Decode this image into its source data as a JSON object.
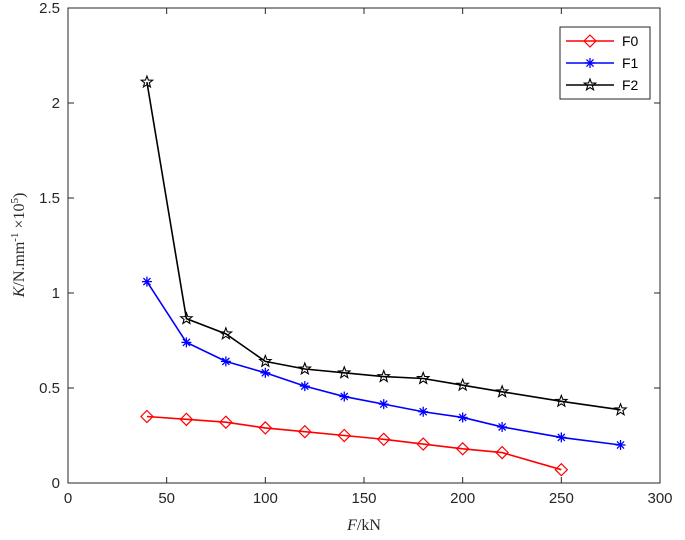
{
  "chart_data": {
    "type": "line",
    "xlabel_italic": "F",
    "xlabel_rest": "/kN",
    "ylabel_italic": "K",
    "ylabel_rest": "/N.mm",
    "ylabel_sup1": "-1",
    "ylabel_times": " ×10",
    "ylabel_sup2": "5",
    "ylabel_close": ")",
    "xlim": [
      0,
      300
    ],
    "ylim": [
      0,
      2.5
    ],
    "xticks": [
      0,
      50,
      100,
      150,
      200,
      250,
      300
    ],
    "yticks": [
      0,
      0.5,
      1,
      1.5,
      2,
      2.5
    ],
    "ytick_labels": [
      "0",
      "0.5",
      "1",
      "1.5",
      "2",
      "2.5"
    ],
    "grid": false,
    "legend_position": "top-right",
    "series": [
      {
        "name": "F0",
        "color": "#ff0000",
        "marker": "diamond",
        "x": [
          40,
          60,
          80,
          100,
          120,
          140,
          160,
          180,
          200,
          220,
          250
        ],
        "y": [
          0.35,
          0.335,
          0.32,
          0.29,
          0.27,
          0.25,
          0.23,
          0.205,
          0.18,
          0.16,
          0.07
        ]
      },
      {
        "name": "F1",
        "color": "#0000ff",
        "marker": "asterisk",
        "x": [
          40,
          60,
          80,
          100,
          120,
          140,
          160,
          180,
          200,
          220,
          250,
          280
        ],
        "y": [
          1.06,
          0.74,
          0.64,
          0.58,
          0.51,
          0.455,
          0.415,
          0.375,
          0.345,
          0.295,
          0.24,
          0.2
        ]
      },
      {
        "name": "F2",
        "color": "#000000",
        "marker": "star",
        "x": [
          40,
          60,
          80,
          100,
          120,
          140,
          160,
          180,
          200,
          220,
          250,
          280
        ],
        "y": [
          2.11,
          0.865,
          0.785,
          0.64,
          0.6,
          0.58,
          0.56,
          0.55,
          0.515,
          0.48,
          0.43,
          0.385
        ]
      }
    ]
  }
}
